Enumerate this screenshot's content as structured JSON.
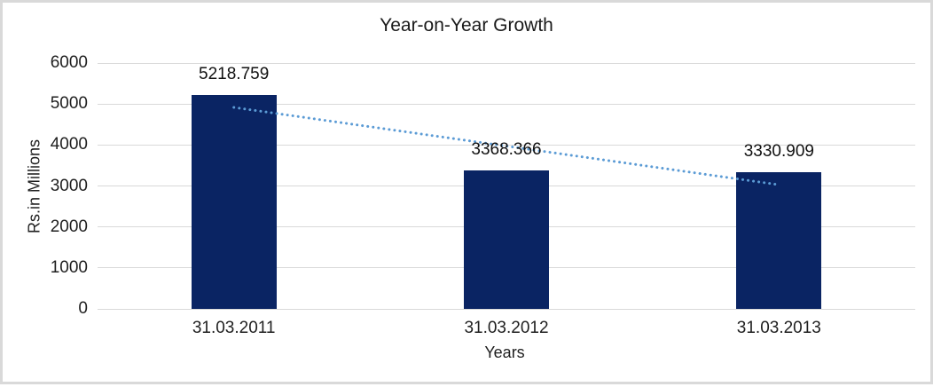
{
  "chart_data": {
    "type": "bar",
    "title": "Year-on-Year Growth",
    "categories": [
      "31.03.2011",
      "31.03.2012",
      "31.03.2013"
    ],
    "values": [
      5218.759,
      3368.366,
      3330.909
    ],
    "data_labels": [
      "5218.759",
      "3368.366",
      "3330.909"
    ],
    "xlabel": "Years",
    "ylabel": "Rs.in Millions",
    "ylim": [
      0,
      6000
    ],
    "ytick_step": 1000,
    "ytick_labels": [
      "0",
      "1000",
      "2000",
      "3000",
      "4000",
      "5000",
      "6000"
    ],
    "grid": true,
    "legend": "none",
    "bar_color": "#0a2463",
    "gridline_color": "#d9d9d9",
    "trendline": {
      "type": "linear",
      "style": "dotted",
      "color": "#5b9bd5",
      "series": "values"
    },
    "frame_border_color": "#d9d9d9",
    "background_color": "#ffffff"
  }
}
